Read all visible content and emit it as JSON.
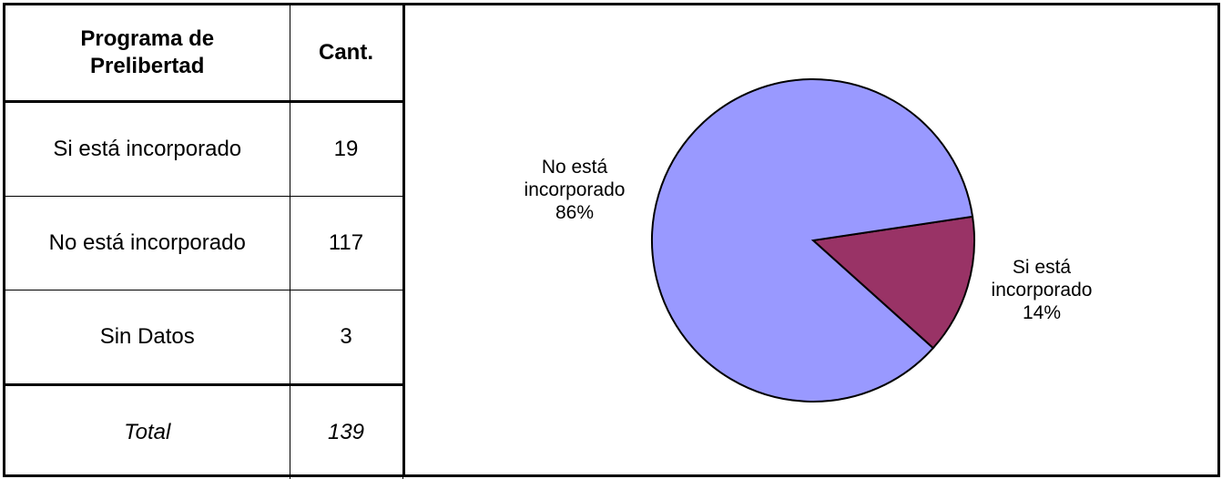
{
  "table": {
    "header": {
      "col1_line1": "Programa de",
      "col1_line2": "Prelibertad",
      "col2": "Cant."
    },
    "rows": [
      {
        "label": "Si está incorporado",
        "value": "19"
      },
      {
        "label": "No está incorporado",
        "value": "117"
      },
      {
        "label": "Sin Datos",
        "value": "3"
      }
    ],
    "total": {
      "label": "Total",
      "value": "139"
    }
  },
  "chart_data": {
    "type": "pie",
    "categories": [
      "Si está incorporado",
      "No está incorporado"
    ],
    "values": [
      14,
      86
    ],
    "units": "%",
    "slices": [
      {
        "name": "Si está incorporado",
        "label_line1": "Si está",
        "label_line2": "incorporado",
        "percent_label": "14%",
        "value": 14,
        "color": "#993366"
      },
      {
        "name": "No está incorporado",
        "label_line1": "No está",
        "label_line2": "incorporado",
        "percent_label": "86%",
        "value": 86,
        "color": "#9999ff"
      }
    ],
    "title": "",
    "legend": "none"
  }
}
